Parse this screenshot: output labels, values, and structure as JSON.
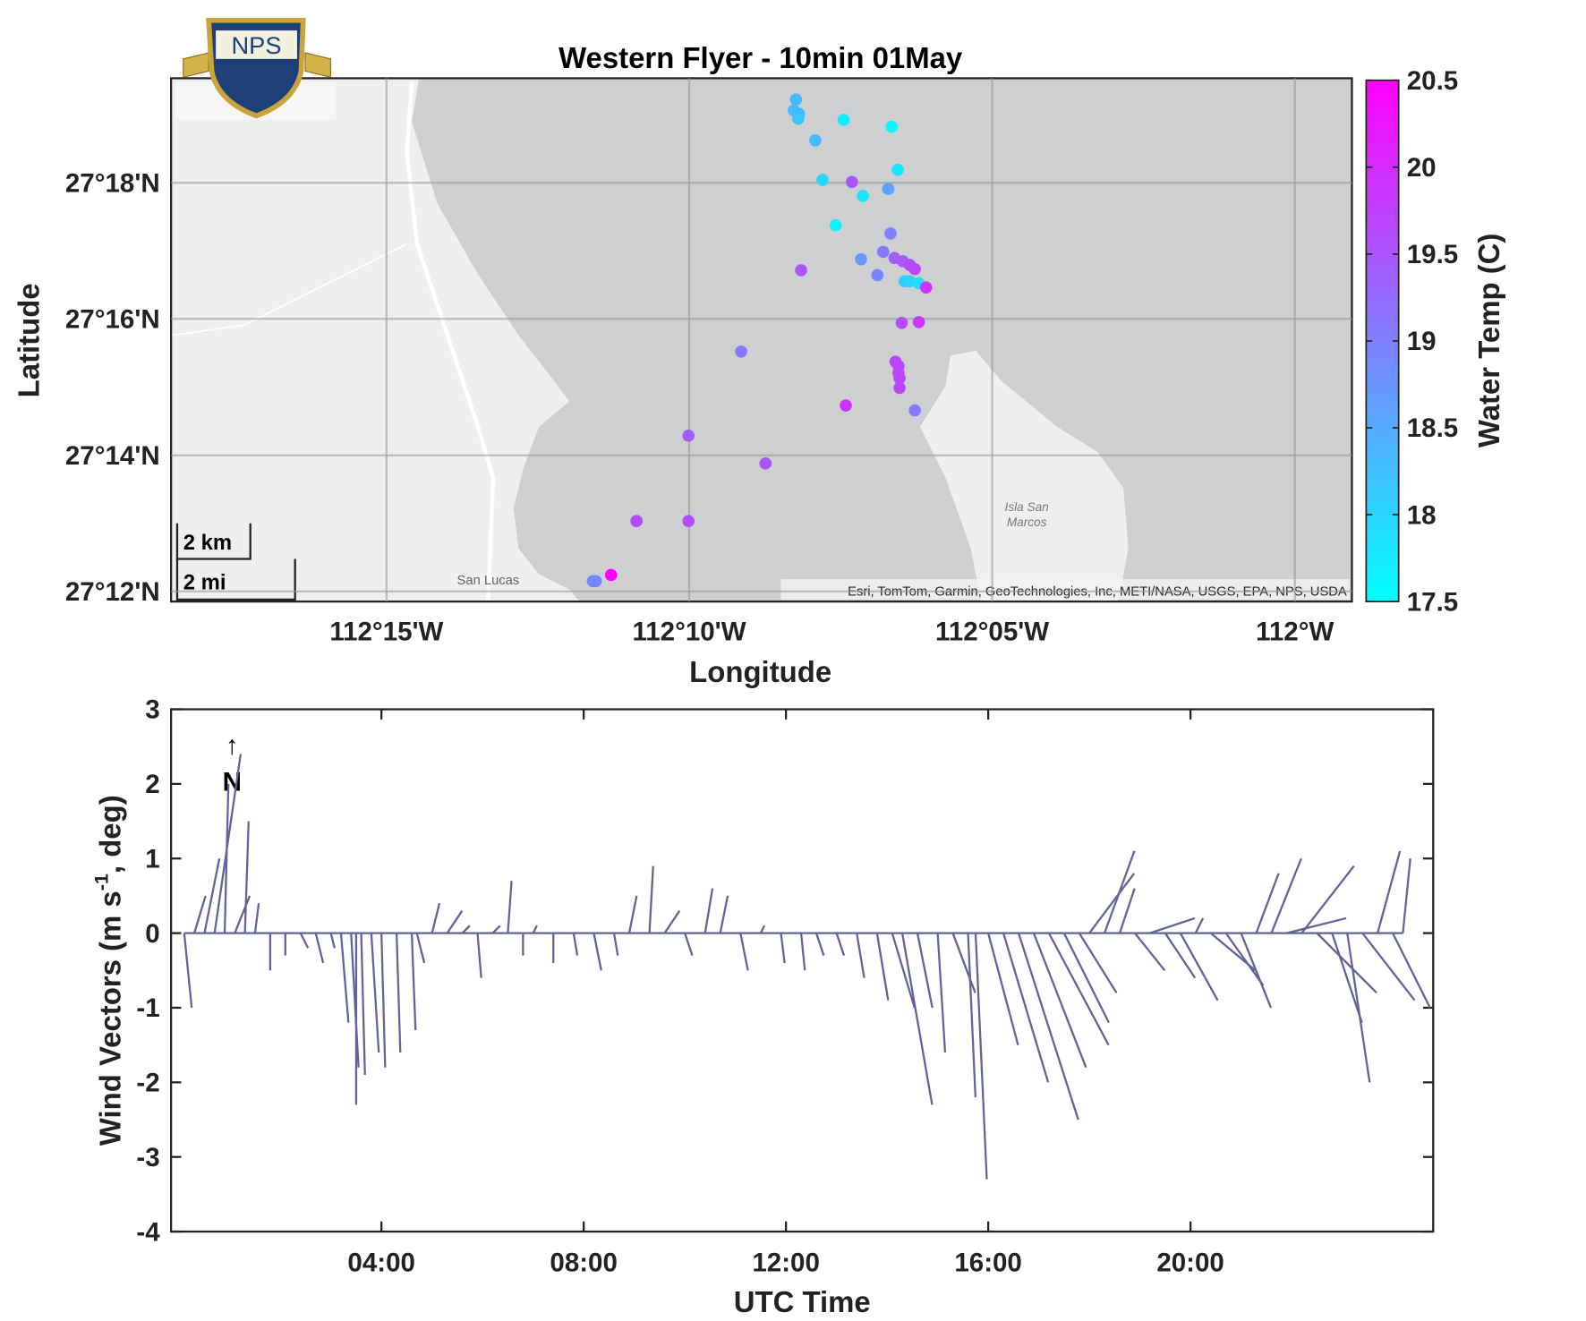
{
  "chart_data": [
    {
      "type": "map_scatter",
      "title": "Western Flyer - 10min 01May",
      "xlabel": "Longitude",
      "ylabel": "Latitude",
      "logo_text": "NPS",
      "scale_labels": [
        "2 km",
        "2 mi"
      ],
      "attribution": "Esri, TomTom, Garmin, GeoTechnologies, Inc, METI/NASA, USGS, EPA, NPS, USDA",
      "place_labels": [
        "San Lucas",
        "Isla San",
        "Marcos"
      ],
      "colorbar_label": "Water Temp (C)",
      "colormap": [
        "#00ffff",
        "#ff00ff"
      ],
      "clim": [
        17.5,
        20.5
      ],
      "cticks": [
        17.5,
        18,
        18.5,
        19,
        19.5,
        20,
        20.5
      ],
      "xlim": [
        -112.3093,
        -111.9843
      ],
      "ylim": [
        27.1975,
        27.3256
      ],
      "xticks": [
        {
          "value": -112.25,
          "label": "112°15'W"
        },
        {
          "value": -112.1667,
          "label": "112°10'W"
        },
        {
          "value": -112.0833,
          "label": "112°05'W"
        },
        {
          "value": -112,
          "label": "112°W"
        }
      ],
      "yticks": [
        {
          "value": 27.2,
          "label": "27°12'N"
        },
        {
          "value": 27.2333,
          "label": "27°14'N"
        },
        {
          "value": 27.2667,
          "label": "27°16'N"
        },
        {
          "value": 27.3,
          "label": "27°18'N"
        }
      ],
      "grid": true,
      "x": [
        -112.1373,
        -112.1379,
        -112.1365,
        -112.1367,
        -112.1242,
        -112.111,
        -112.132,
        -112.1093,
        -112.13,
        -112.1219,
        -112.1189,
        -112.1119,
        -112.1264,
        -112.1113,
        -112.1133,
        -112.1194,
        -112.1102,
        -112.1079,
        -112.106,
        -112.1046,
        -112.1359,
        -112.1149,
        -112.1074,
        -112.106,
        -112.1035,
        -112.1015,
        -112.1082,
        -112.1035,
        -112.1524,
        -112.1099,
        -112.1091,
        -112.1091,
        -112.1088,
        -112.1088,
        -112.1236,
        -112.1046,
        -112.1669,
        -112.1457,
        -112.1812,
        -112.1669,
        -112.1882,
        -112.1924,
        -112.1932
      ],
      "y": [
        27.3204,
        27.3177,
        27.3169,
        27.3157,
        27.3154,
        27.3137,
        27.3104,
        27.3032,
        27.3007,
        27.3002,
        27.2968,
        27.2985,
        27.2896,
        27.2876,
        27.2831,
        27.2813,
        27.2816,
        27.2808,
        27.2799,
        27.2789,
        27.2786,
        27.2774,
        27.2759,
        27.2759,
        27.2754,
        27.2744,
        27.2657,
        27.2659,
        27.2587,
        27.2562,
        27.2552,
        27.2535,
        27.2522,
        27.2498,
        27.2455,
        27.2443,
        27.2381,
        27.2313,
        27.2172,
        27.2172,
        27.204,
        27.2025,
        27.2025
      ],
      "values": [
        18.3,
        18.3,
        18.3,
        18.2,
        17.7,
        17.6,
        18.3,
        17.8,
        18.0,
        19.5,
        17.8,
        18.6,
        17.6,
        19.0,
        19.1,
        18.7,
        19.4,
        19.5,
        19.6,
        19.7,
        19.5,
        18.9,
        18.1,
        18.0,
        17.9,
        19.9,
        19.6,
        19.8,
        19.1,
        19.7,
        19.7,
        19.7,
        19.7,
        19.7,
        19.9,
        19.1,
        19.4,
        19.5,
        19.6,
        19.6,
        20.5,
        18.9,
        18.9
      ]
    },
    {
      "type": "stick",
      "xlabel": "UTC Time",
      "ylabel": [
        "Wind Vectors (m s",
        "-1",
        ", deg)"
      ],
      "annotation": [
        "↑",
        "N"
      ],
      "color": "#62629a",
      "xlim": [
        -0.16,
        24.8
      ],
      "ylim": [
        -4,
        3
      ],
      "xticks": [
        {
          "value": 4,
          "label": "04:00"
        },
        {
          "value": 8,
          "label": "08:00"
        },
        {
          "value": 12,
          "label": "12:00"
        },
        {
          "value": 16,
          "label": "16:00"
        },
        {
          "value": 20,
          "label": "20:00"
        }
      ],
      "yticks": [
        -4,
        -3,
        -2,
        -1,
        0,
        1,
        2,
        3
      ],
      "x": [
        0.1,
        0.3,
        0.5,
        0.7,
        0.9,
        1.1,
        1.3,
        1.5,
        1.8,
        2.1,
        2.4,
        2.7,
        3.0,
        3.2,
        3.4,
        3.5,
        3.6,
        3.8,
        4.0,
        4.3,
        4.6,
        4.7,
        5.0,
        5.3,
        5.6,
        5.9,
        6.2,
        6.5,
        6.8,
        7.0,
        7.4,
        7.8,
        8.2,
        8.6,
        8.9,
        9.3,
        9.6,
        10.0,
        10.4,
        10.7,
        11.1,
        11.5,
        11.9,
        12.3,
        12.6,
        13.0,
        13.4,
        13.8,
        14.1,
        14.3,
        14.6,
        15.0,
        15.3,
        15.6,
        15.75,
        16.0,
        16.3,
        16.6,
        16.9,
        17.2,
        17.5,
        17.8,
        18.0,
        18.3,
        18.6,
        18.9,
        19.2,
        19.5,
        19.8,
        20.1,
        20.4,
        20.7,
        21.0,
        21.3,
        21.6,
        21.9,
        22.2,
        22.5,
        22.8,
        23.1,
        23.4,
        23.7,
        24.0,
        24.2
      ],
      "u": [
        0.1,
        0.15,
        0.2,
        0.35,
        0.05,
        0.2,
        0.05,
        0.05,
        0,
        0,
        0.1,
        0.1,
        0.05,
        0.1,
        0.1,
        0,
        0.05,
        0.1,
        0.05,
        0.05,
        0.05,
        0.1,
        0.1,
        0.2,
        0.1,
        0.05,
        0.1,
        0.05,
        0,
        0.05,
        0,
        0.05,
        0.1,
        0.05,
        0.1,
        0.05,
        0.2,
        0.1,
        0.1,
        0.1,
        0.1,
        0.05,
        0.05,
        0.05,
        0.1,
        0.1,
        0.1,
        0.15,
        0.3,
        0.4,
        0.2,
        0.1,
        0.3,
        0.1,
        0.15,
        0.4,
        0.6,
        0.8,
        0.7,
        0.8,
        0.6,
        0.5,
        0.6,
        0.4,
        0.2,
        0.4,
        0.6,
        0.4,
        0.5,
        0.1,
        0.6,
        0.5,
        0.4,
        0.3,
        0.4,
        0.8,
        0.7,
        0.8,
        0.4,
        0.3,
        0.7,
        0.3,
        0.5,
        0.1
      ],
      "v": [
        -1.0,
        0.5,
        1.0,
        2.4,
        2.0,
        0.5,
        1.5,
        0.4,
        -0.5,
        -0.3,
        -0.2,
        -0.4,
        -0.2,
        -1.2,
        -1.8,
        -2.3,
        -1.9,
        -1.6,
        -1.8,
        -1.6,
        -1.3,
        -0.4,
        0.4,
        0.3,
        0.1,
        -0.6,
        0.1,
        0.7,
        -0.3,
        0.1,
        -0.4,
        -0.3,
        -0.5,
        -0.3,
        0.5,
        0.9,
        0.3,
        -0.3,
        0.6,
        0.5,
        -0.5,
        0.1,
        -0.4,
        -0.5,
        -0.3,
        -0.3,
        -0.6,
        -0.9,
        -1.0,
        -2.3,
        -1.0,
        -1.6,
        -0.8,
        -2.2,
        -3.3,
        -1.5,
        -2.0,
        -2.5,
        -1.8,
        -1.5,
        -1.2,
        -0.8,
        0.8,
        1.1,
        0.6,
        -0.5,
        0.2,
        -0.6,
        -0.9,
        0.2,
        -0.5,
        -0.7,
        -1.0,
        0.8,
        1.0,
        0.2,
        0.9,
        -0.8,
        -1.2,
        -2.0,
        -0.9,
        1.1,
        -1.0,
        1.0
      ]
    }
  ]
}
